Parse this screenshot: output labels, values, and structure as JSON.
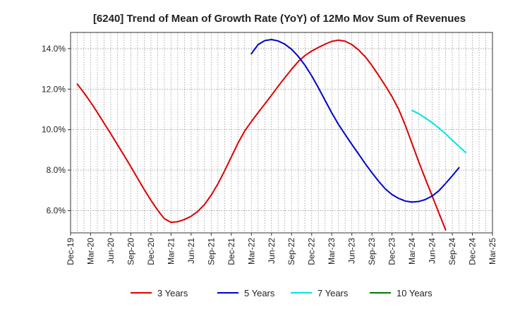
{
  "chart_data": {
    "type": "line",
    "title": "[6240]  Trend of Mean of Growth Rate (YoY) of 12Mo Mov Sum of Revenues",
    "xlabel": "",
    "ylabel": "",
    "x_ticks": [
      "Dec-19",
      "Mar-20",
      "Jun-20",
      "Sep-20",
      "Dec-20",
      "Mar-21",
      "Jun-21",
      "Sep-21",
      "Dec-21",
      "Mar-22",
      "Jun-22",
      "Sep-22",
      "Dec-22",
      "Mar-23",
      "Jun-23",
      "Sep-23",
      "Dec-23",
      "Mar-24",
      "Jun-24",
      "Sep-24",
      "Dec-24",
      "Mar-25"
    ],
    "y_ticks": [
      "6.0%",
      "8.0%",
      "10.0%",
      "12.0%",
      "14.0%"
    ],
    "y_tick_values": [
      6,
      8,
      10,
      12,
      14
    ],
    "ylim": [
      4.9,
      14.8
    ],
    "grid": true,
    "legend_position": "bottom",
    "series": [
      {
        "name": "3 Years",
        "color": "#dd0000",
        "start_index": 1,
        "values": [
          12.25,
          11.82,
          11.35,
          10.85,
          10.32,
          9.8,
          9.26,
          8.72,
          8.17,
          7.6,
          7.04,
          6.51,
          6.02,
          5.6,
          5.42,
          5.45,
          5.56,
          5.72,
          5.96,
          6.3,
          6.76,
          7.32,
          7.96,
          8.65,
          9.33,
          9.93,
          10.4,
          10.84,
          11.26,
          11.7,
          12.14,
          12.57,
          12.98,
          13.36,
          13.66,
          13.88,
          14.06,
          14.22,
          14.36,
          14.42,
          14.37,
          14.2,
          13.94,
          13.6,
          13.17,
          12.68,
          12.17,
          11.63,
          11.0,
          10.2,
          9.3,
          8.4,
          7.55,
          6.72,
          5.88,
          5.05
        ]
      },
      {
        "name": "5 Years",
        "color": "#0000cc",
        "start_index": 27,
        "values": [
          13.75,
          14.2,
          14.4,
          14.45,
          14.38,
          14.22,
          13.97,
          13.62,
          13.18,
          12.66,
          12.07,
          11.45,
          10.83,
          10.26,
          9.76,
          9.27,
          8.8,
          8.32,
          7.87,
          7.45,
          7.07,
          6.79,
          6.6,
          6.47,
          6.42,
          6.45,
          6.55,
          6.72,
          6.98,
          7.34,
          7.72,
          8.12
        ]
      },
      {
        "name": "7 Years",
        "color": "#00e5e5",
        "start_index": 51,
        "values": [
          10.95,
          10.78,
          10.57,
          10.34,
          10.08,
          9.79,
          9.48,
          9.17,
          8.87
        ]
      },
      {
        "name": "10 Years",
        "color": "#007700",
        "start_index": 0,
        "values": []
      }
    ]
  }
}
